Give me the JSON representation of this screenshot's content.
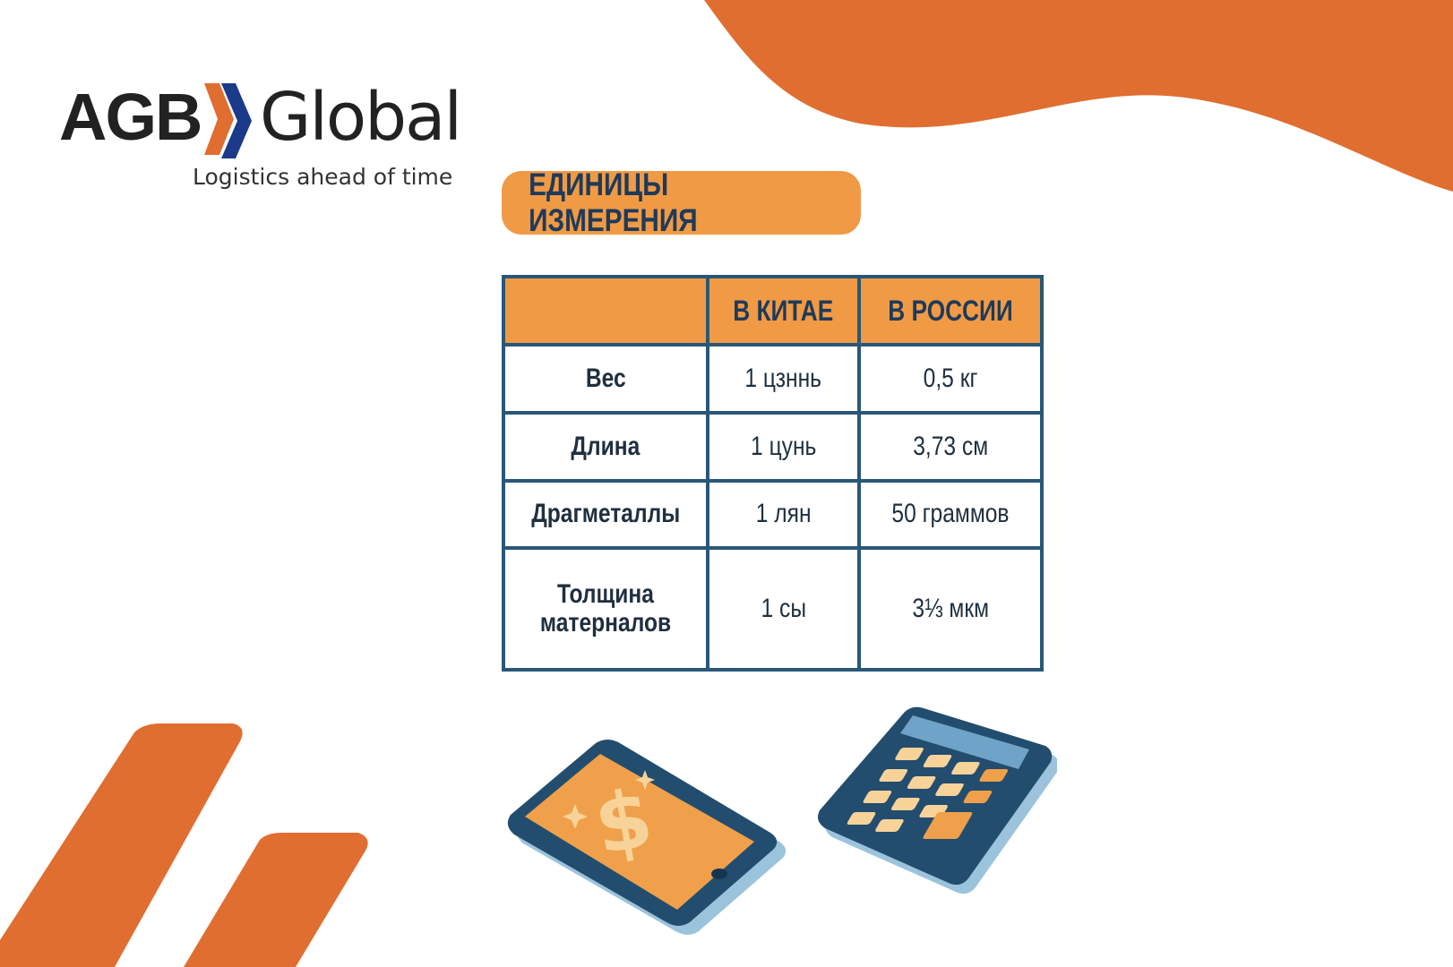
{
  "brand": {
    "name_bold": "AGB",
    "name_light": "Global",
    "tagline": "Logistics ahead of time",
    "colors": {
      "orange": "#e06e30",
      "navy": "#1c3a8a",
      "text": "#222222"
    }
  },
  "title": "ЕДИНИЦЫ ИЗМЕРЕНИЯ",
  "table": {
    "headers": [
      "",
      "В КИТАЕ",
      "В РОССИИ"
    ],
    "rows": [
      {
        "label": "Вес",
        "china": "1 цзннь",
        "russia": "0,5 кг"
      },
      {
        "label": "Длина",
        "china": "1 цунь",
        "russia": "3,73 см"
      },
      {
        "label": "Драгметаллы",
        "china": "1 лян",
        "russia": "50 граммов"
      },
      {
        "label": "Толщина матерналов",
        "china": "1 сы",
        "russia": "3⅓ мкм"
      }
    ]
  },
  "illustrations": [
    "smartphone-dollar-icon",
    "calculator-icon"
  ],
  "colors": {
    "accent": "#e06e30",
    "header": "#f09a45",
    "border": "#2a5777",
    "text": "#1f3a5a"
  }
}
